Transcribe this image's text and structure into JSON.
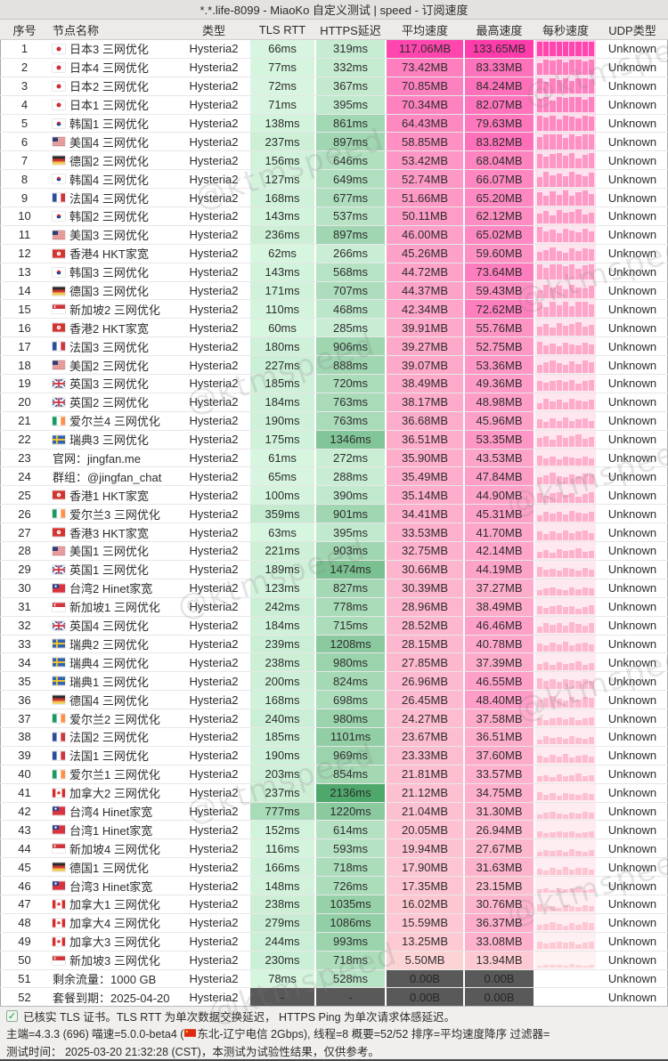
{
  "title": "*.*.life-8099 - MiaoKo 自定义测试 | speed - 订阅速度",
  "watermark": "@ktmspeed",
  "colors": {
    "green_low": "#d8f6e1",
    "green_high": "#4da76a",
    "pink_low": "#fddbd8",
    "pink_high": "#ff3cac",
    "muted_bg": "#595959",
    "muted_text": "#262626"
  },
  "table": {
    "columns": [
      "序号",
      "节点名称",
      "类型",
      "TLS RTT",
      "HTTPS延迟",
      "平均速度",
      "最高速度",
      "每秒速度",
      "UDP类型"
    ],
    "rows": [
      {
        "no": "1",
        "flag": "jp",
        "name": "日本3 三网优化",
        "type": "Hysteria2",
        "tls": "66ms",
        "https": "319ms",
        "avg": "117.06MB",
        "max": "133.65MB",
        "udp": "Unknown"
      },
      {
        "no": "2",
        "flag": "jp",
        "name": "日本4 三网优化",
        "type": "Hysteria2",
        "tls": "77ms",
        "https": "332ms",
        "avg": "73.42MB",
        "max": "83.33MB",
        "udp": "Unknown"
      },
      {
        "no": "3",
        "flag": "jp",
        "name": "日本2 三网优化",
        "type": "Hysteria2",
        "tls": "72ms",
        "https": "367ms",
        "avg": "70.85MB",
        "max": "84.24MB",
        "udp": "Unknown"
      },
      {
        "no": "4",
        "flag": "jp",
        "name": "日本1 三网优化",
        "type": "Hysteria2",
        "tls": "71ms",
        "https": "395ms",
        "avg": "70.34MB",
        "max": "82.07MB",
        "udp": "Unknown"
      },
      {
        "no": "5",
        "flag": "kr",
        "name": "韩国1 三网优化",
        "type": "Hysteria2",
        "tls": "138ms",
        "https": "861ms",
        "avg": "64.43MB",
        "max": "79.63MB",
        "udp": "Unknown"
      },
      {
        "no": "6",
        "flag": "us",
        "name": "美国4 三网优化",
        "type": "Hysteria2",
        "tls": "237ms",
        "https": "897ms",
        "avg": "58.85MB",
        "max": "83.82MB",
        "udp": "Unknown"
      },
      {
        "no": "7",
        "flag": "de",
        "name": "德国2 三网优化",
        "type": "Hysteria2",
        "tls": "156ms",
        "https": "646ms",
        "avg": "53.42MB",
        "max": "68.04MB",
        "udp": "Unknown"
      },
      {
        "no": "8",
        "flag": "kr",
        "name": "韩国4 三网优化",
        "type": "Hysteria2",
        "tls": "127ms",
        "https": "649ms",
        "avg": "52.74MB",
        "max": "66.07MB",
        "udp": "Unknown"
      },
      {
        "no": "9",
        "flag": "fr",
        "name": "法国4 三网优化",
        "type": "Hysteria2",
        "tls": "168ms",
        "https": "677ms",
        "avg": "51.66MB",
        "max": "65.20MB",
        "udp": "Unknown"
      },
      {
        "no": "10",
        "flag": "kr",
        "name": "韩国2 三网优化",
        "type": "Hysteria2",
        "tls": "143ms",
        "https": "537ms",
        "avg": "50.11MB",
        "max": "62.12MB",
        "udp": "Unknown"
      },
      {
        "no": "11",
        "flag": "us",
        "name": "美国3 三网优化",
        "type": "Hysteria2",
        "tls": "236ms",
        "https": "897ms",
        "avg": "46.00MB",
        "max": "65.02MB",
        "udp": "Unknown"
      },
      {
        "no": "12",
        "flag": "hk",
        "name": "香港4 HKT家宽",
        "type": "Hysteria2",
        "tls": "62ms",
        "https": "266ms",
        "avg": "45.26MB",
        "max": "59.60MB",
        "udp": "Unknown"
      },
      {
        "no": "13",
        "flag": "kr",
        "name": "韩国3 三网优化",
        "type": "Hysteria2",
        "tls": "143ms",
        "https": "568ms",
        "avg": "44.72MB",
        "max": "73.64MB",
        "udp": "Unknown"
      },
      {
        "no": "14",
        "flag": "de",
        "name": "德国3 三网优化",
        "type": "Hysteria2",
        "tls": "171ms",
        "https": "707ms",
        "avg": "44.37MB",
        "max": "59.43MB",
        "udp": "Unknown"
      },
      {
        "no": "15",
        "flag": "sg",
        "name": "新加坡2 三网优化",
        "type": "Hysteria2",
        "tls": "110ms",
        "https": "468ms",
        "avg": "42.34MB",
        "max": "72.62MB",
        "udp": "Unknown"
      },
      {
        "no": "16",
        "flag": "hk",
        "name": "香港2 HKT家宽",
        "type": "Hysteria2",
        "tls": "60ms",
        "https": "285ms",
        "avg": "39.91MB",
        "max": "55.76MB",
        "udp": "Unknown"
      },
      {
        "no": "17",
        "flag": "fr",
        "name": "法国3 三网优化",
        "type": "Hysteria2",
        "tls": "180ms",
        "https": "906ms",
        "avg": "39.27MB",
        "max": "52.75MB",
        "udp": "Unknown"
      },
      {
        "no": "18",
        "flag": "us",
        "name": "美国2 三网优化",
        "type": "Hysteria2",
        "tls": "227ms",
        "https": "888ms",
        "avg": "39.07MB",
        "max": "53.36MB",
        "udp": "Unknown"
      },
      {
        "no": "19",
        "flag": "gb",
        "name": "英国3 三网优化",
        "type": "Hysteria2",
        "tls": "185ms",
        "https": "720ms",
        "avg": "38.49MB",
        "max": "49.36MB",
        "udp": "Unknown"
      },
      {
        "no": "20",
        "flag": "gb",
        "name": "英国2 三网优化",
        "type": "Hysteria2",
        "tls": "184ms",
        "https": "763ms",
        "avg": "38.17MB",
        "max": "48.98MB",
        "udp": "Unknown"
      },
      {
        "no": "21",
        "flag": "ie",
        "name": "爱尔兰4 三网优化",
        "type": "Hysteria2",
        "tls": "190ms",
        "https": "763ms",
        "avg": "36.68MB",
        "max": "45.96MB",
        "udp": "Unknown"
      },
      {
        "no": "22",
        "flag": "se",
        "name": "瑞典3 三网优化",
        "type": "Hysteria2",
        "tls": "175ms",
        "https": "1346ms",
        "avg": "36.51MB",
        "max": "53.35MB",
        "udp": "Unknown"
      },
      {
        "no": "23",
        "flag": "",
        "name": "官网：jingfan.me",
        "type": "Hysteria2",
        "tls": "61ms",
        "https": "272ms",
        "avg": "35.90MB",
        "max": "43.53MB",
        "udp": "Unknown"
      },
      {
        "no": "24",
        "flag": "",
        "name": "群组：@jingfan_chat",
        "type": "Hysteria2",
        "tls": "65ms",
        "https": "288ms",
        "avg": "35.49MB",
        "max": "47.84MB",
        "udp": "Unknown"
      },
      {
        "no": "25",
        "flag": "hk",
        "name": "香港1 HKT家宽",
        "type": "Hysteria2",
        "tls": "100ms",
        "https": "390ms",
        "avg": "35.14MB",
        "max": "44.90MB",
        "udp": "Unknown"
      },
      {
        "no": "26",
        "flag": "ie",
        "name": "爱尔兰3 三网优化",
        "type": "Hysteria2",
        "tls": "359ms",
        "https": "901ms",
        "avg": "34.41MB",
        "max": "45.31MB",
        "udp": "Unknown"
      },
      {
        "no": "27",
        "flag": "hk",
        "name": "香港3 HKT家宽",
        "type": "Hysteria2",
        "tls": "63ms",
        "https": "395ms",
        "avg": "33.53MB",
        "max": "41.70MB",
        "udp": "Unknown"
      },
      {
        "no": "28",
        "flag": "us",
        "name": "美国1 三网优化",
        "type": "Hysteria2",
        "tls": "221ms",
        "https": "903ms",
        "avg": "32.75MB",
        "max": "42.14MB",
        "udp": "Unknown"
      },
      {
        "no": "29",
        "flag": "gb",
        "name": "英国1 三网优化",
        "type": "Hysteria2",
        "tls": "189ms",
        "https": "1474ms",
        "avg": "30.66MB",
        "max": "44.19MB",
        "udp": "Unknown"
      },
      {
        "no": "30",
        "flag": "tw",
        "name": "台湾2 Hinet家宽",
        "type": "Hysteria2",
        "tls": "123ms",
        "https": "827ms",
        "avg": "30.39MB",
        "max": "37.27MB",
        "udp": "Unknown"
      },
      {
        "no": "31",
        "flag": "sg",
        "name": "新加坡1 三网优化",
        "type": "Hysteria2",
        "tls": "242ms",
        "https": "778ms",
        "avg": "28.96MB",
        "max": "38.49MB",
        "udp": "Unknown"
      },
      {
        "no": "32",
        "flag": "gb",
        "name": "英国4 三网优化",
        "type": "Hysteria2",
        "tls": "184ms",
        "https": "715ms",
        "avg": "28.52MB",
        "max": "46.46MB",
        "udp": "Unknown"
      },
      {
        "no": "33",
        "flag": "se",
        "name": "瑞典2 三网优化",
        "type": "Hysteria2",
        "tls": "239ms",
        "https": "1208ms",
        "avg": "28.15MB",
        "max": "40.78MB",
        "udp": "Unknown"
      },
      {
        "no": "34",
        "flag": "se",
        "name": "瑞典4 三网优化",
        "type": "Hysteria2",
        "tls": "238ms",
        "https": "980ms",
        "avg": "27.85MB",
        "max": "37.39MB",
        "udp": "Unknown"
      },
      {
        "no": "35",
        "flag": "se",
        "name": "瑞典1 三网优化",
        "type": "Hysteria2",
        "tls": "200ms",
        "https": "824ms",
        "avg": "26.96MB",
        "max": "46.55MB",
        "udp": "Unknown"
      },
      {
        "no": "36",
        "flag": "de",
        "name": "德国4 三网优化",
        "type": "Hysteria2",
        "tls": "168ms",
        "https": "698ms",
        "avg": "26.45MB",
        "max": "48.40MB",
        "udp": "Unknown"
      },
      {
        "no": "37",
        "flag": "ie",
        "name": "爱尔兰2 三网优化",
        "type": "Hysteria2",
        "tls": "240ms",
        "https": "980ms",
        "avg": "24.27MB",
        "max": "37.58MB",
        "udp": "Unknown"
      },
      {
        "no": "38",
        "flag": "fr",
        "name": "法国2 三网优化",
        "type": "Hysteria2",
        "tls": "185ms",
        "https": "1101ms",
        "avg": "23.67MB",
        "max": "36.51MB",
        "udp": "Unknown"
      },
      {
        "no": "39",
        "flag": "fr",
        "name": "法国1 三网优化",
        "type": "Hysteria2",
        "tls": "190ms",
        "https": "969ms",
        "avg": "23.33MB",
        "max": "37.60MB",
        "udp": "Unknown"
      },
      {
        "no": "40",
        "flag": "ie",
        "name": "爱尔兰1 三网优化",
        "type": "Hysteria2",
        "tls": "203ms",
        "https": "854ms",
        "avg": "21.81MB",
        "max": "33.57MB",
        "udp": "Unknown"
      },
      {
        "no": "41",
        "flag": "ca",
        "name": "加拿大2 三网优化",
        "type": "Hysteria2",
        "tls": "237ms",
        "https": "2136ms",
        "avg": "21.12MB",
        "max": "34.75MB",
        "udp": "Unknown"
      },
      {
        "no": "42",
        "flag": "tw",
        "name": "台湾4 Hinet家宽",
        "type": "Hysteria2",
        "tls": "777ms",
        "https": "1220ms",
        "avg": "21.04MB",
        "max": "31.30MB",
        "udp": "Unknown"
      },
      {
        "no": "43",
        "flag": "tw",
        "name": "台湾1 Hinet家宽",
        "type": "Hysteria2",
        "tls": "152ms",
        "https": "614ms",
        "avg": "20.05MB",
        "max": "26.94MB",
        "udp": "Unknown"
      },
      {
        "no": "44",
        "flag": "sg",
        "name": "新加坡4 三网优化",
        "type": "Hysteria2",
        "tls": "116ms",
        "https": "593ms",
        "avg": "19.94MB",
        "max": "27.67MB",
        "udp": "Unknown"
      },
      {
        "no": "45",
        "flag": "de",
        "name": "德国1 三网优化",
        "type": "Hysteria2",
        "tls": "166ms",
        "https": "718ms",
        "avg": "17.90MB",
        "max": "31.63MB",
        "udp": "Unknown"
      },
      {
        "no": "46",
        "flag": "tw",
        "name": "台湾3 Hinet家宽",
        "type": "Hysteria2",
        "tls": "148ms",
        "https": "726ms",
        "avg": "17.35MB",
        "max": "23.15MB",
        "udp": "Unknown"
      },
      {
        "no": "47",
        "flag": "ca",
        "name": "加拿大1 三网优化",
        "type": "Hysteria2",
        "tls": "238ms",
        "https": "1035ms",
        "avg": "16.02MB",
        "max": "30.76MB",
        "udp": "Unknown"
      },
      {
        "no": "48",
        "flag": "ca",
        "name": "加拿大4 三网优化",
        "type": "Hysteria2",
        "tls": "279ms",
        "https": "1086ms",
        "avg": "15.59MB",
        "max": "36.37MB",
        "udp": "Unknown"
      },
      {
        "no": "49",
        "flag": "ca",
        "name": "加拿大3 三网优化",
        "type": "Hysteria2",
        "tls": "244ms",
        "https": "993ms",
        "avg": "13.25MB",
        "max": "33.08MB",
        "udp": "Unknown"
      },
      {
        "no": "50",
        "flag": "sg",
        "name": "新加坡3 三网优化",
        "type": "Hysteria2",
        "tls": "230ms",
        "https": "718ms",
        "avg": "5.50MB",
        "max": "13.94MB",
        "udp": "Unknown"
      },
      {
        "no": "51",
        "flag": "",
        "name": "剩余流量：1000 GB",
        "type": "Hysteria2",
        "tls": "78ms",
        "https": "528ms",
        "avg": "0.00B",
        "max": "0.00B",
        "udp": "Unknown"
      },
      {
        "no": "52",
        "flag": "",
        "name": "套餐到期：2025-04-20",
        "type": "Hysteria2",
        "tls": "-",
        "https": "-",
        "avg": "0.00B",
        "max": "0.00B",
        "udp": "Unknown"
      }
    ]
  },
  "sparkline_patterns": [
    [
      0.92,
      0.7,
      0.88,
      1.0,
      0.78,
      0.95,
      0.62,
      0.85,
      0.97
    ],
    [
      0.6,
      0.95,
      0.75,
      0.88,
      0.65,
      1.0,
      0.8,
      0.7,
      0.9
    ],
    [
      0.85,
      0.6,
      0.92,
      0.7,
      1.0,
      0.65,
      0.88,
      0.95,
      0.72
    ],
    [
      0.7,
      0.88,
      0.6,
      0.95,
      0.75,
      0.85,
      1.0,
      0.65,
      0.8
    ],
    [
      1.0,
      0.72,
      0.85,
      0.6,
      0.9,
      0.78,
      0.68,
      0.92,
      0.75
    ],
    [
      0.65,
      0.8,
      1.0,
      0.75,
      0.6,
      0.9,
      0.7,
      0.95,
      0.85
    ]
  ],
  "footer": {
    "line1": "已核实 TLS 证书。TLS RTT 为单次数据交换延迟， HTTPS Ping 为单次请求体感延迟。",
    "line2a": "主端=4.3.3 (696) 喵速=5.0.0-beta4 (",
    "line2b": "东北-辽宁电信 2Gbps), 线程=8 概要=52/52 排序=平均速度降序 过滤器=",
    "line3": "测试时间： 2025-03-20 21:32:28 (CST)，本测试为试验性结果，仅供参考。"
  }
}
